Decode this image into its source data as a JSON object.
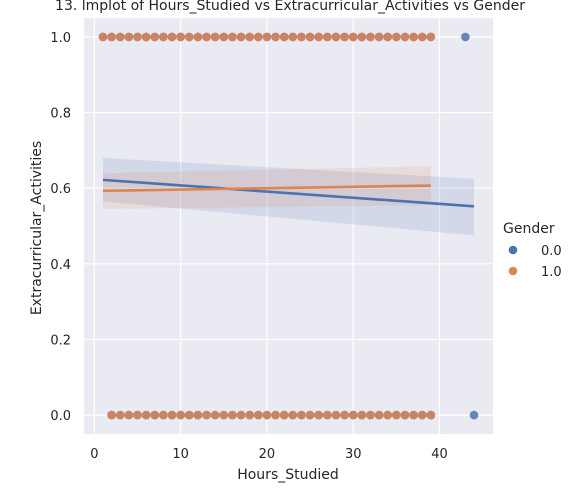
{
  "chart_data": {
    "type": "scatter",
    "title": "13. lmplot of Hours_Studied vs Extracurricular_Activities vs Gender",
    "xlabel": "Hours_Studied",
    "ylabel": "Extracurricular_Activities",
    "xlim": [
      -1.2,
      46.2
    ],
    "ylim": [
      -0.05,
      1.05
    ],
    "xticks": [
      0,
      10,
      20,
      30,
      40
    ],
    "yticks": [
      0.0,
      0.2,
      0.4,
      0.6,
      0.8,
      1.0
    ],
    "xtick_labels": [
      "0",
      "10",
      "20",
      "30",
      "40"
    ],
    "ytick_labels": [
      "0.0",
      "0.2",
      "0.4",
      "0.6",
      "0.8",
      "1.0"
    ],
    "grid": true,
    "background_color": "#eaeaf2",
    "legend": {
      "title": "Gender",
      "placement": "right"
    },
    "series": [
      {
        "name": "0.0",
        "color": "#4c72b0",
        "points_y1_x": [
          1,
          2,
          3,
          4,
          5,
          6,
          7,
          8,
          9,
          10,
          11,
          12,
          13,
          14,
          15,
          16,
          17,
          18,
          19,
          20,
          21,
          22,
          23,
          24,
          25,
          26,
          27,
          28,
          29,
          30,
          31,
          32,
          33,
          34,
          35,
          36,
          37,
          38,
          39,
          43
        ],
        "points_y0_x": [
          2,
          3,
          4,
          5,
          6,
          7,
          8,
          9,
          10,
          11,
          12,
          13,
          14,
          15,
          16,
          17,
          18,
          19,
          20,
          21,
          22,
          23,
          24,
          25,
          26,
          27,
          28,
          29,
          30,
          31,
          32,
          33,
          34,
          35,
          36,
          37,
          38,
          39,
          44
        ],
        "fit": {
          "x": [
            1,
            44
          ],
          "y": [
            0.622,
            0.552
          ]
        },
        "ci_upper": [
          0.68,
          0.625
        ],
        "ci_lower": [
          0.565,
          0.475
        ]
      },
      {
        "name": "1.0",
        "color": "#dd8452",
        "points_y1_x": [
          1,
          2,
          3,
          4,
          5,
          6,
          7,
          8,
          9,
          10,
          11,
          12,
          13,
          14,
          15,
          16,
          17,
          18,
          19,
          20,
          21,
          22,
          23,
          24,
          25,
          26,
          27,
          28,
          29,
          30,
          31,
          32,
          33,
          34,
          35,
          36,
          37,
          38,
          39
        ],
        "points_y0_x": [
          2,
          3,
          4,
          5,
          6,
          7,
          8,
          9,
          10,
          11,
          12,
          13,
          14,
          15,
          16,
          17,
          18,
          19,
          20,
          21,
          22,
          23,
          24,
          25,
          26,
          27,
          28,
          29,
          30,
          31,
          32,
          33,
          34,
          35,
          36,
          37,
          38,
          39
        ],
        "fit": {
          "x": [
            1,
            39
          ],
          "y": [
            0.593,
            0.607
          ]
        },
        "ci_upper": [
          0.64,
          0.658
        ],
        "ci_lower": [
          0.545,
          0.555
        ]
      }
    ]
  }
}
